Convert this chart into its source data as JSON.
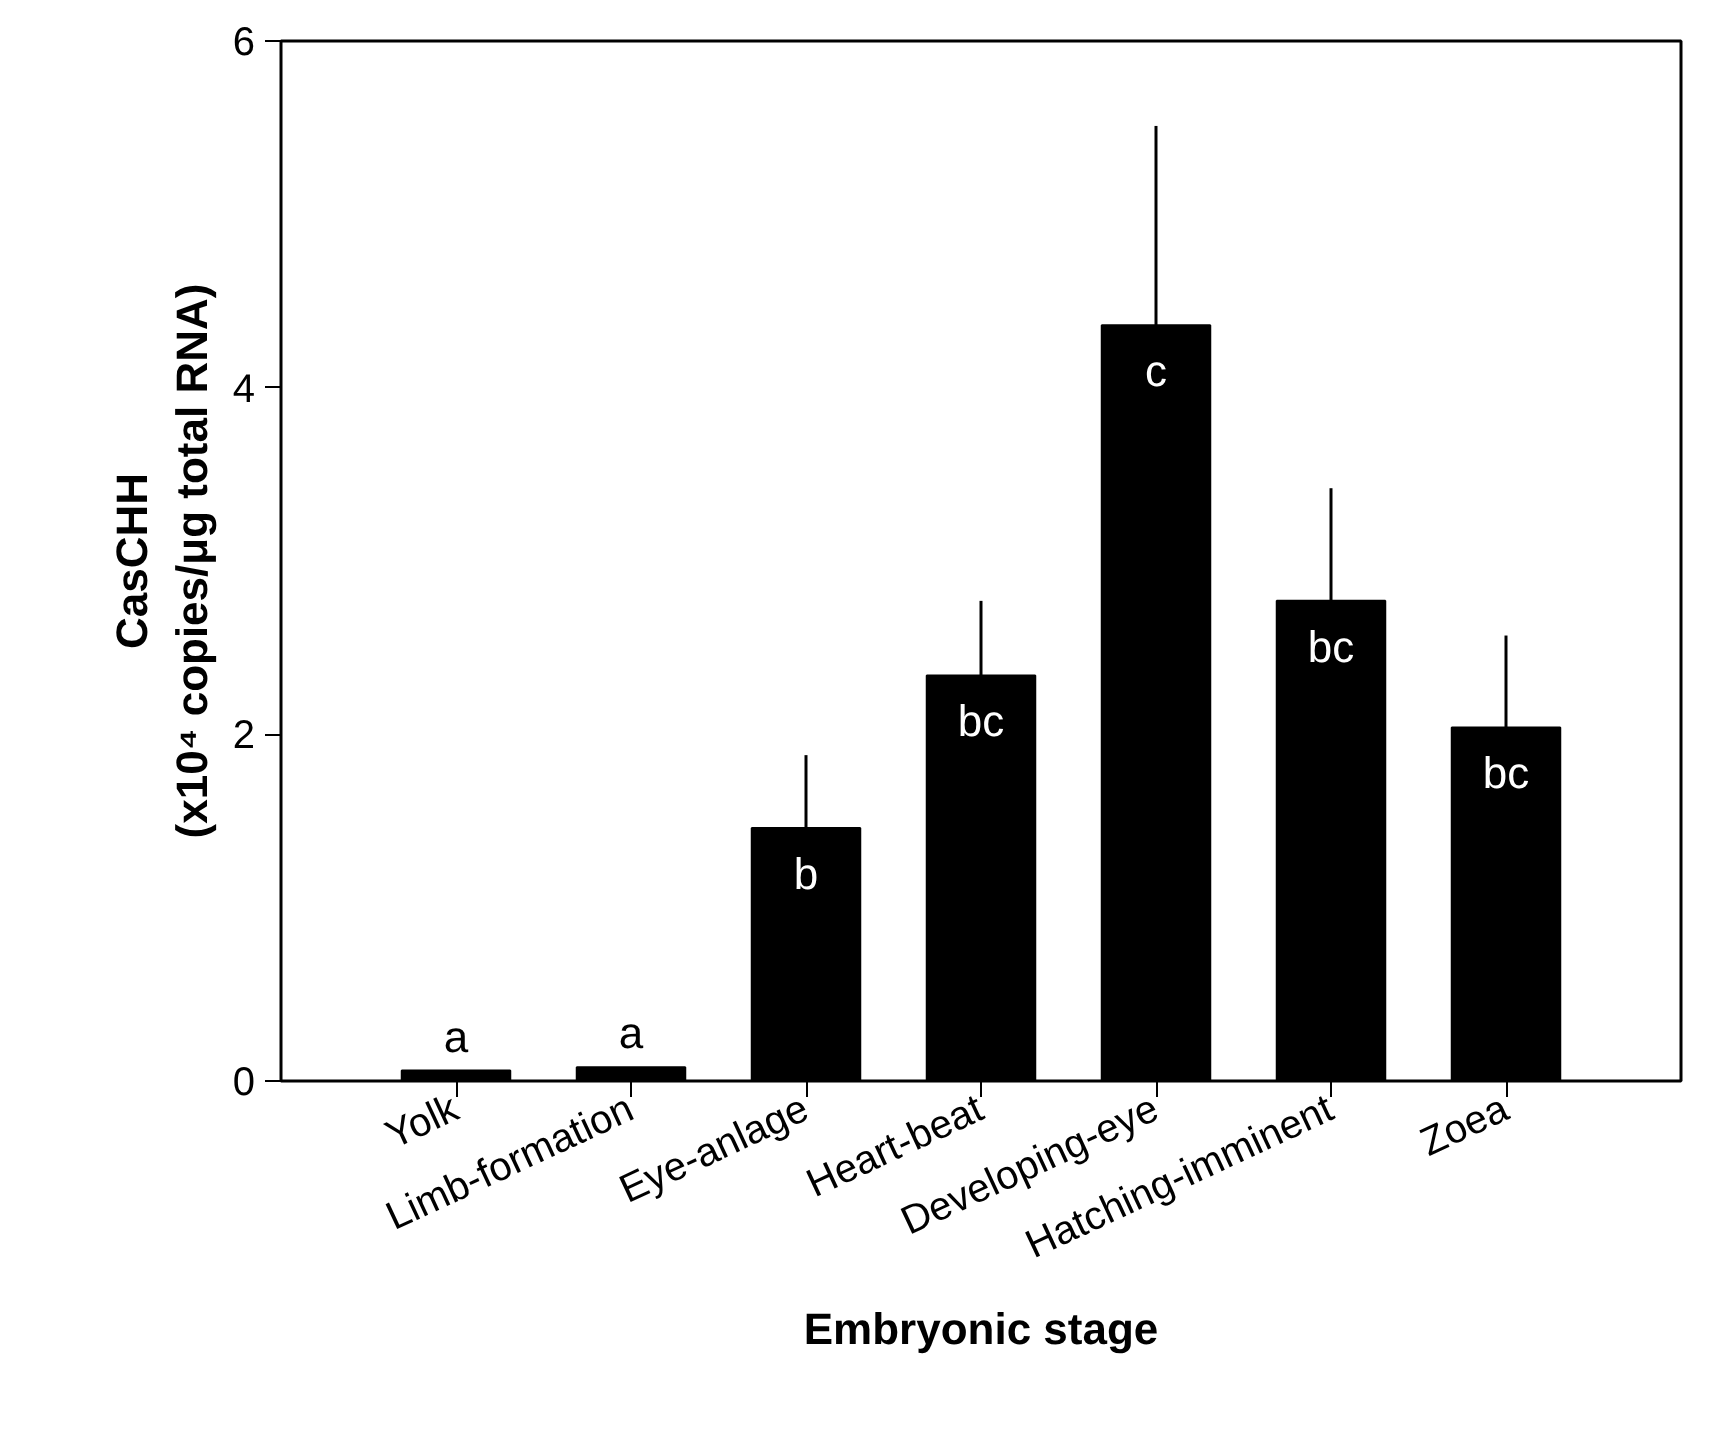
{
  "chart_data": {
    "type": "bar",
    "xlabel": "Embryonic stage",
    "ylabel": "CasCHH\n(x10⁴ copies/μg total RNA)",
    "categories": [
      "Yolk",
      "Limb-formation",
      "Eye-anlage",
      "Heart-beat",
      "Developing-eye",
      "Hatching-imminent",
      "Zoea"
    ],
    "values": [
      0.06,
      0.08,
      1.46,
      2.34,
      4.36,
      2.77,
      2.04
    ],
    "errors": [
      null,
      null,
      [
        1.46,
        1.88
      ],
      [
        2.34,
        2.77
      ],
      [
        4.36,
        5.51
      ],
      [
        2.77,
        3.42
      ],
      [
        2.04,
        2.57
      ]
    ],
    "color": "#000000",
    "ylim": [
      0,
      6
    ],
    "yticks": [
      0,
      2,
      4,
      6
    ],
    "grid": false,
    "annotations": [
      {
        "text": "a",
        "x": "Yolk",
        "y": 0.06
      },
      {
        "text": "a",
        "x": "Limb-formation",
        "y": 0.08
      },
      {
        "text": "b",
        "x": "Eye-anlage",
        "y": 1.46
      },
      {
        "text": "bc",
        "x": "Heart-beat",
        "y": 2.34
      },
      {
        "text": "c",
        "x": "Developing-eye",
        "y": 4.36
      },
      {
        "text": "bc",
        "x": "Hatching-imminent",
        "y": 2.77
      },
      {
        "text": "bc",
        "x": "Zoea",
        "y": 2.04
      }
    ]
  }
}
